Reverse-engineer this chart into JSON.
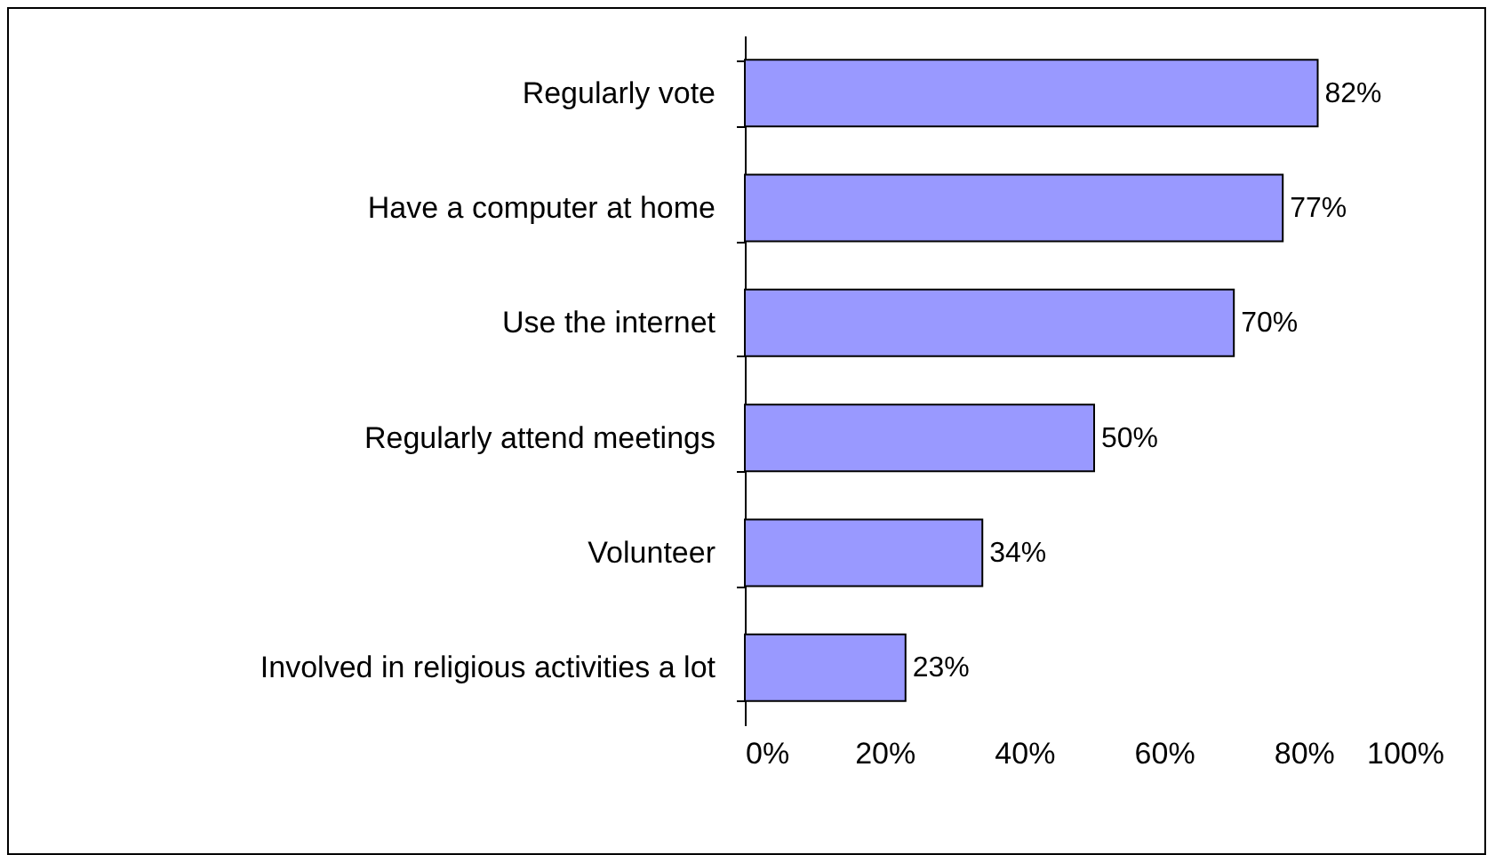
{
  "chart_data": {
    "type": "bar",
    "orientation": "horizontal",
    "categories": [
      "Regularly vote",
      "Have a computer at home",
      "Use the internet",
      "Regularly attend meetings",
      "Volunteer",
      "Involved in religious activities a lot"
    ],
    "values": [
      82,
      77,
      70,
      50,
      34,
      23
    ],
    "color": "#9999ff",
    "value_labels": [
      "82%",
      "77%",
      "70%",
      "50%",
      "34%",
      "23%"
    ],
    "xlim": [
      0,
      100
    ],
    "xticks": [
      {
        "value": 0,
        "label": "0%"
      },
      {
        "value": 20,
        "label": "20%"
      },
      {
        "value": 40,
        "label": "40%"
      },
      {
        "value": 60,
        "label": "60%"
      },
      {
        "value": 80,
        "label": "80%"
      },
      {
        "value": 100,
        "label": "100%"
      }
    ],
    "grid": false
  }
}
